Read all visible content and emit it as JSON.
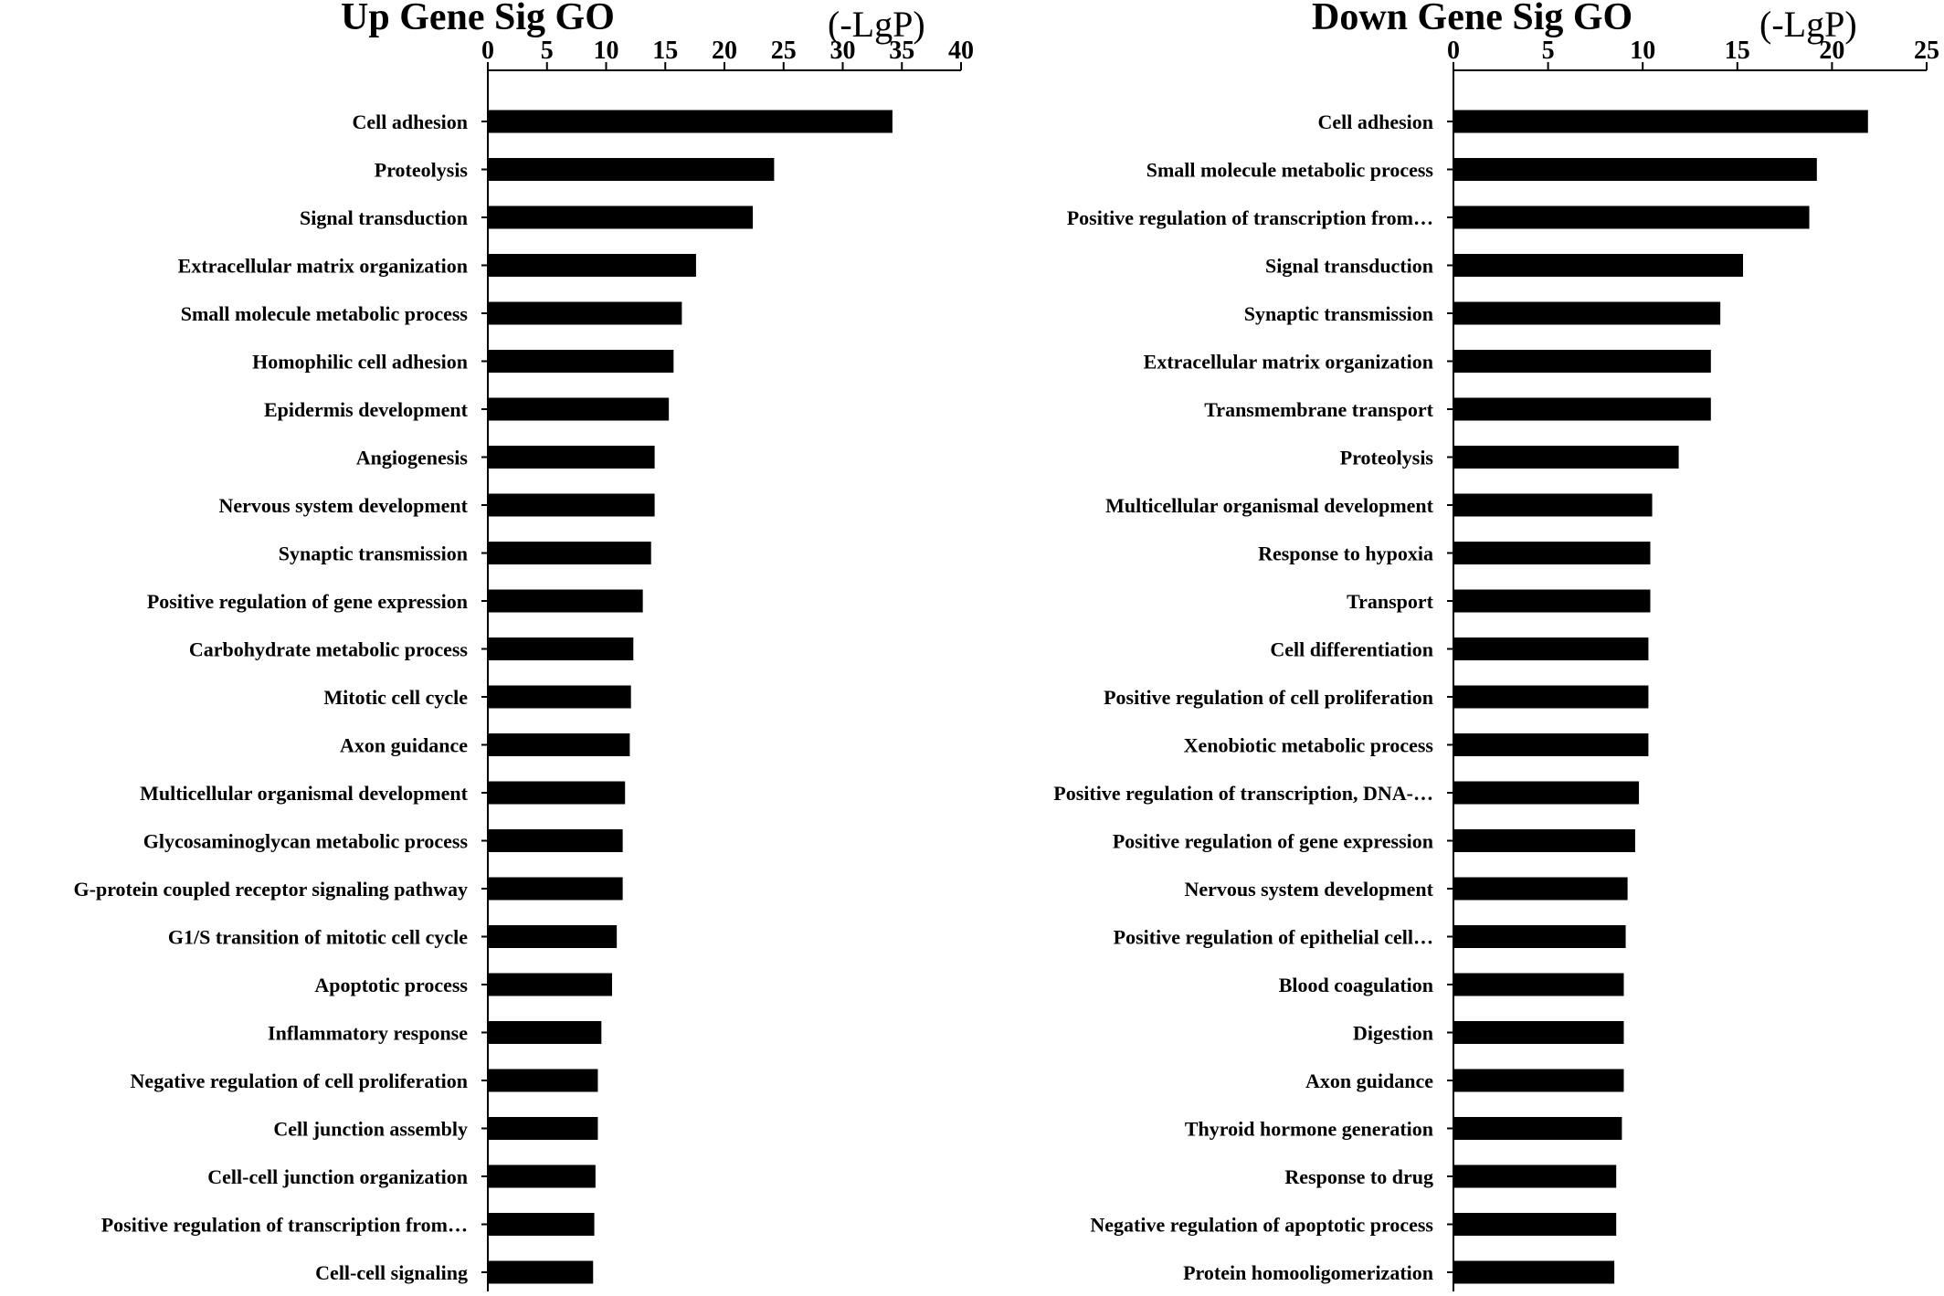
{
  "chart_data": [
    {
      "type": "bar",
      "orientation": "horizontal",
      "title": "Up Gene Sig GO",
      "unit": "(-LgP)",
      "xlim": [
        0,
        40
      ],
      "ticks": [
        0,
        5,
        10,
        15,
        20,
        25,
        30,
        35,
        40
      ],
      "axis_position": "top",
      "grid": false,
      "legend": "none",
      "bar_color": "#000000",
      "categories": [
        "Cell adhesion",
        "Proteolysis",
        "Signal transduction",
        "Extracellular matrix organization",
        "Small molecule metabolic process",
        "Homophilic cell adhesion",
        "Epidermis development",
        "Angiogenesis",
        "Nervous system development",
        "Synaptic transmission",
        "Positive regulation of gene expression",
        "Carbohydrate metabolic process",
        "Mitotic cell cycle",
        "Axon guidance",
        "Multicellular organismal development",
        "Glycosaminoglycan metabolic process",
        "G-protein coupled receptor signaling pathway",
        "G1/S transition of mitotic cell cycle",
        "Apoptotic process",
        "Inflammatory response",
        "Negative regulation of cell proliferation",
        "Cell junction assembly",
        "Cell-cell junction organization",
        "Positive regulation of transcription from…",
        "Cell-cell signaling"
      ],
      "values": [
        34.2,
        24.2,
        22.4,
        17.6,
        16.4,
        15.7,
        15.3,
        14.1,
        14.1,
        13.8,
        13.1,
        12.3,
        12.1,
        12.0,
        11.6,
        11.4,
        11.4,
        10.9,
        10.5,
        9.6,
        9.3,
        9.3,
        9.1,
        9.0,
        8.9
      ]
    },
    {
      "type": "bar",
      "orientation": "horizontal",
      "title": "Down Gene Sig GO",
      "unit": "(-LgP)",
      "xlim": [
        0,
        25
      ],
      "ticks": [
        0,
        5,
        10,
        15,
        20,
        25
      ],
      "axis_position": "top",
      "grid": false,
      "legend": "none",
      "bar_color": "#000000",
      "categories": [
        "Cell adhesion",
        "Small molecule metabolic process",
        "Positive regulation of transcription from…",
        "Signal transduction",
        "Synaptic transmission",
        "Extracellular matrix organization",
        "Transmembrane transport",
        "Proteolysis",
        "Multicellular organismal development",
        "Response to hypoxia",
        "Transport",
        "Cell differentiation",
        "Positive regulation of cell proliferation",
        "Xenobiotic metabolic process",
        "Positive regulation of transcription, DNA-…",
        "Positive regulation of gene expression",
        "Nervous system development",
        "Positive regulation of epithelial cell…",
        "Blood coagulation",
        "Digestion",
        "Axon guidance",
        "Thyroid hormone generation",
        "Response to drug",
        "Negative regulation of apoptotic process",
        "Protein homooligomerization"
      ],
      "values": [
        21.9,
        19.2,
        18.8,
        15.3,
        14.1,
        13.6,
        13.6,
        11.9,
        10.5,
        10.4,
        10.4,
        10.3,
        10.3,
        10.3,
        9.8,
        9.6,
        9.2,
        9.1,
        9.0,
        9.0,
        9.0,
        8.9,
        8.6,
        8.6,
        8.5
      ]
    }
  ]
}
